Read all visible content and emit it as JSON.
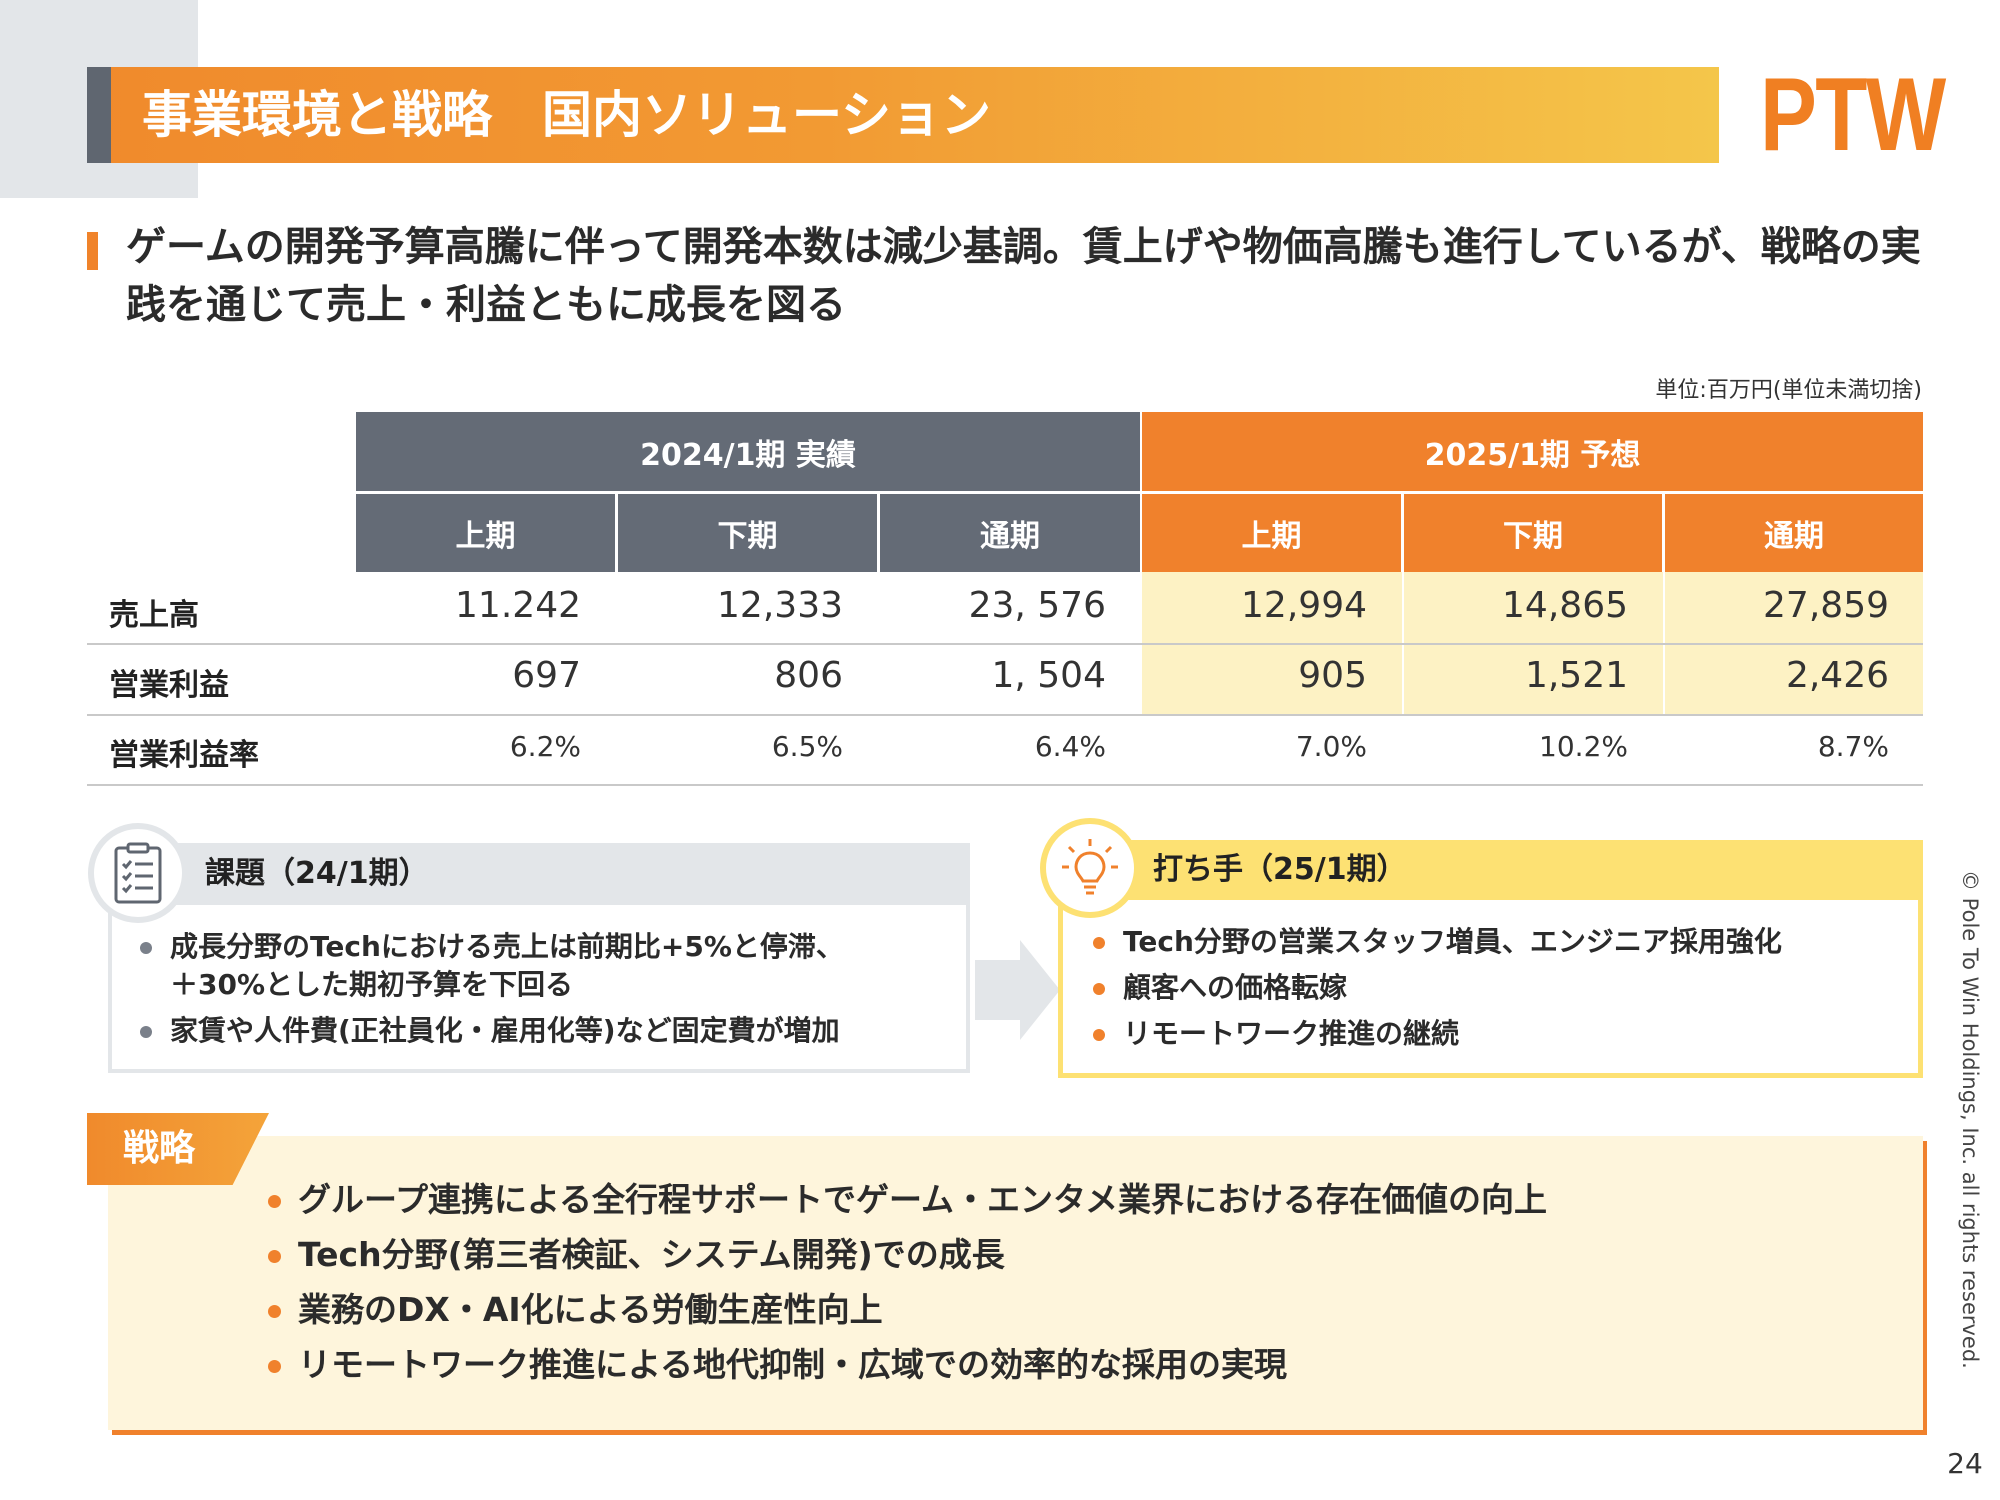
{
  "header": {
    "title": "事業環境と戦略　国内ソリューション",
    "logo": "PTW"
  },
  "headline": "ゲームの開発予算高騰に伴って開発本数は減少基調。賃上げや物価高騰も進行しているが、戦略の実践を通じて売上・利益ともに成長を図る",
  "unit_note": "単位:百万円(単位未満切捨)",
  "table": {
    "group_headers": [
      "2024/1期 実績",
      "2025/1期 予想"
    ],
    "sub_headers": [
      "上期",
      "下期",
      "通期",
      "上期",
      "下期",
      "通期"
    ],
    "rows": [
      {
        "label": "売上高",
        "values": [
          "11.242",
          "12,333",
          "23, 576",
          "12,994",
          "14,865",
          "27,859"
        ]
      },
      {
        "label": "営業利益",
        "values": [
          "697",
          "806",
          "1, 504",
          "905",
          "1,521",
          "2,426"
        ]
      },
      {
        "label": "営業利益率",
        "values": [
          "6.2%",
          "6.5%",
          "6.4%",
          "7.0%",
          "10.2%",
          "8.7%"
        ]
      }
    ]
  },
  "issues": {
    "title": "課題（24/1期）",
    "icon": "checklist-icon",
    "bullets": [
      "成長分野のTechにおける売上は前期比+5%と停滞、\n＋30%とした期初予算を下回る",
      "家賃や人件費(正社員化・雇用化等)など固定費が増加"
    ]
  },
  "measures": {
    "title": "打ち手（25/1期）",
    "icon": "lightbulb-icon",
    "bullets": [
      "Tech分野の営業スタッフ増員、エンジニア採用強化",
      "顧客への価格転嫁",
      "リモートワーク推進の継続"
    ]
  },
  "strategy": {
    "tag": "戦略",
    "bullets": [
      "グループ連携による全行程サポートでゲーム・エンタメ業界における存在価値の向上",
      "Tech分野(第三者検証、システム開発)での成長",
      "業務のDX・AI化による労働生産性向上",
      "リモートワーク推進による地代抑制・広域での効率的な採用の実現"
    ]
  },
  "footer": {
    "copyright": "© Pole To Win Holdings, Inc. all rights reserved.",
    "page_number": "24"
  },
  "colors": {
    "orange": "#f0812c",
    "gray": "#646b76",
    "yellow_highlight": "#fdf2c4",
    "yellow_panel": "#fde173"
  }
}
